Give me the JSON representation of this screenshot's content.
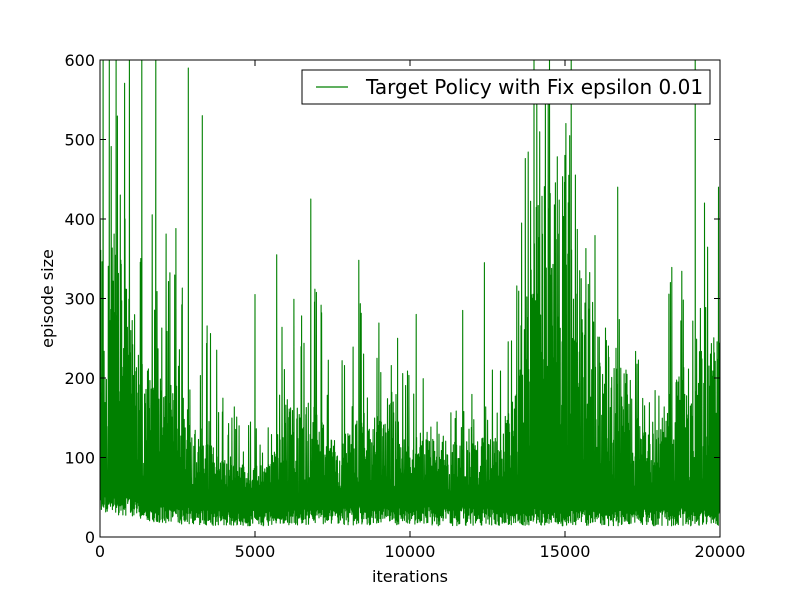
{
  "chart_data": {
    "type": "line",
    "xlabel": "iterations",
    "ylabel": "episode size",
    "xlim": [
      0,
      20000
    ],
    "ylim": [
      0,
      600
    ],
    "xticks": [
      "0",
      "5000",
      "10000",
      "15000",
      "20000"
    ],
    "yticks": [
      "0",
      "100",
      "200",
      "300",
      "400",
      "500",
      "600"
    ],
    "grid": false,
    "legend_position": "top-right",
    "series": [
      {
        "name": "Target Policy with Fix epsilon 0.01",
        "color": "#008000",
        "envelope": {
          "x": [
            0,
            500,
            1000,
            1500,
            2000,
            2500,
            3000,
            3500,
            4000,
            4500,
            5000,
            5500,
            6000,
            6500,
            7000,
            7500,
            8000,
            8500,
            9000,
            9500,
            10000,
            10500,
            11000,
            11500,
            12000,
            12500,
            13000,
            13500,
            14000,
            14500,
            15000,
            15500,
            16000,
            16500,
            17000,
            17500,
            18000,
            18500,
            19000,
            19500,
            20000
          ],
          "upper": [
            600,
            600,
            580,
            420,
            400,
            330,
            360,
            300,
            220,
            160,
            150,
            170,
            320,
            300,
            340,
            240,
            240,
            320,
            270,
            220,
            210,
            220,
            230,
            200,
            200,
            220,
            210,
            380,
            600,
            600,
            600,
            430,
            420,
            400,
            330,
            220,
            230,
            360,
            380,
            420,
            440
          ],
          "lower": [
            30,
            28,
            26,
            20,
            18,
            16,
            15,
            14,
            13,
            13,
            14,
            14,
            15,
            15,
            16,
            15,
            15,
            15,
            15,
            14,
            14,
            14,
            14,
            14,
            14,
            14,
            14,
            14,
            14,
            14,
            14,
            14,
            14,
            14,
            14,
            14,
            14,
            14,
            14,
            14,
            14
          ],
          "dense_top": [
            400,
            380,
            300,
            220,
            200,
            180,
            160,
            120,
            100,
            90,
            90,
            100,
            160,
            170,
            170,
            130,
            130,
            160,
            150,
            130,
            120,
            120,
            130,
            120,
            120,
            130,
            130,
            200,
            420,
            480,
            450,
            280,
            280,
            260,
            220,
            130,
            140,
            200,
            220,
            240,
            260
          ]
        },
        "peaks": [
          {
            "x": 100,
            "y": 600
          },
          {
            "x": 300,
            "y": 600
          },
          {
            "x": 520,
            "y": 600
          },
          {
            "x": 950,
            "y": 600
          },
          {
            "x": 1350,
            "y": 600
          },
          {
            "x": 1800,
            "y": 600
          },
          {
            "x": 2850,
            "y": 590
          },
          {
            "x": 3300,
            "y": 530
          },
          {
            "x": 2450,
            "y": 388
          },
          {
            "x": 5000,
            "y": 305
          },
          {
            "x": 5700,
            "y": 355
          },
          {
            "x": 6800,
            "y": 425
          },
          {
            "x": 8350,
            "y": 348
          },
          {
            "x": 9600,
            "y": 250
          },
          {
            "x": 10200,
            "y": 280
          },
          {
            "x": 11700,
            "y": 285
          },
          {
            "x": 12400,
            "y": 345
          },
          {
            "x": 13600,
            "y": 395
          },
          {
            "x": 14000,
            "y": 600
          },
          {
            "x": 14500,
            "y": 600
          },
          {
            "x": 15200,
            "y": 600
          },
          {
            "x": 16700,
            "y": 440
          },
          {
            "x": 18400,
            "y": 320
          },
          {
            "x": 19200,
            "y": 600
          },
          {
            "x": 19500,
            "y": 420
          },
          {
            "x": 19950,
            "y": 440
          }
        ]
      }
    ]
  }
}
